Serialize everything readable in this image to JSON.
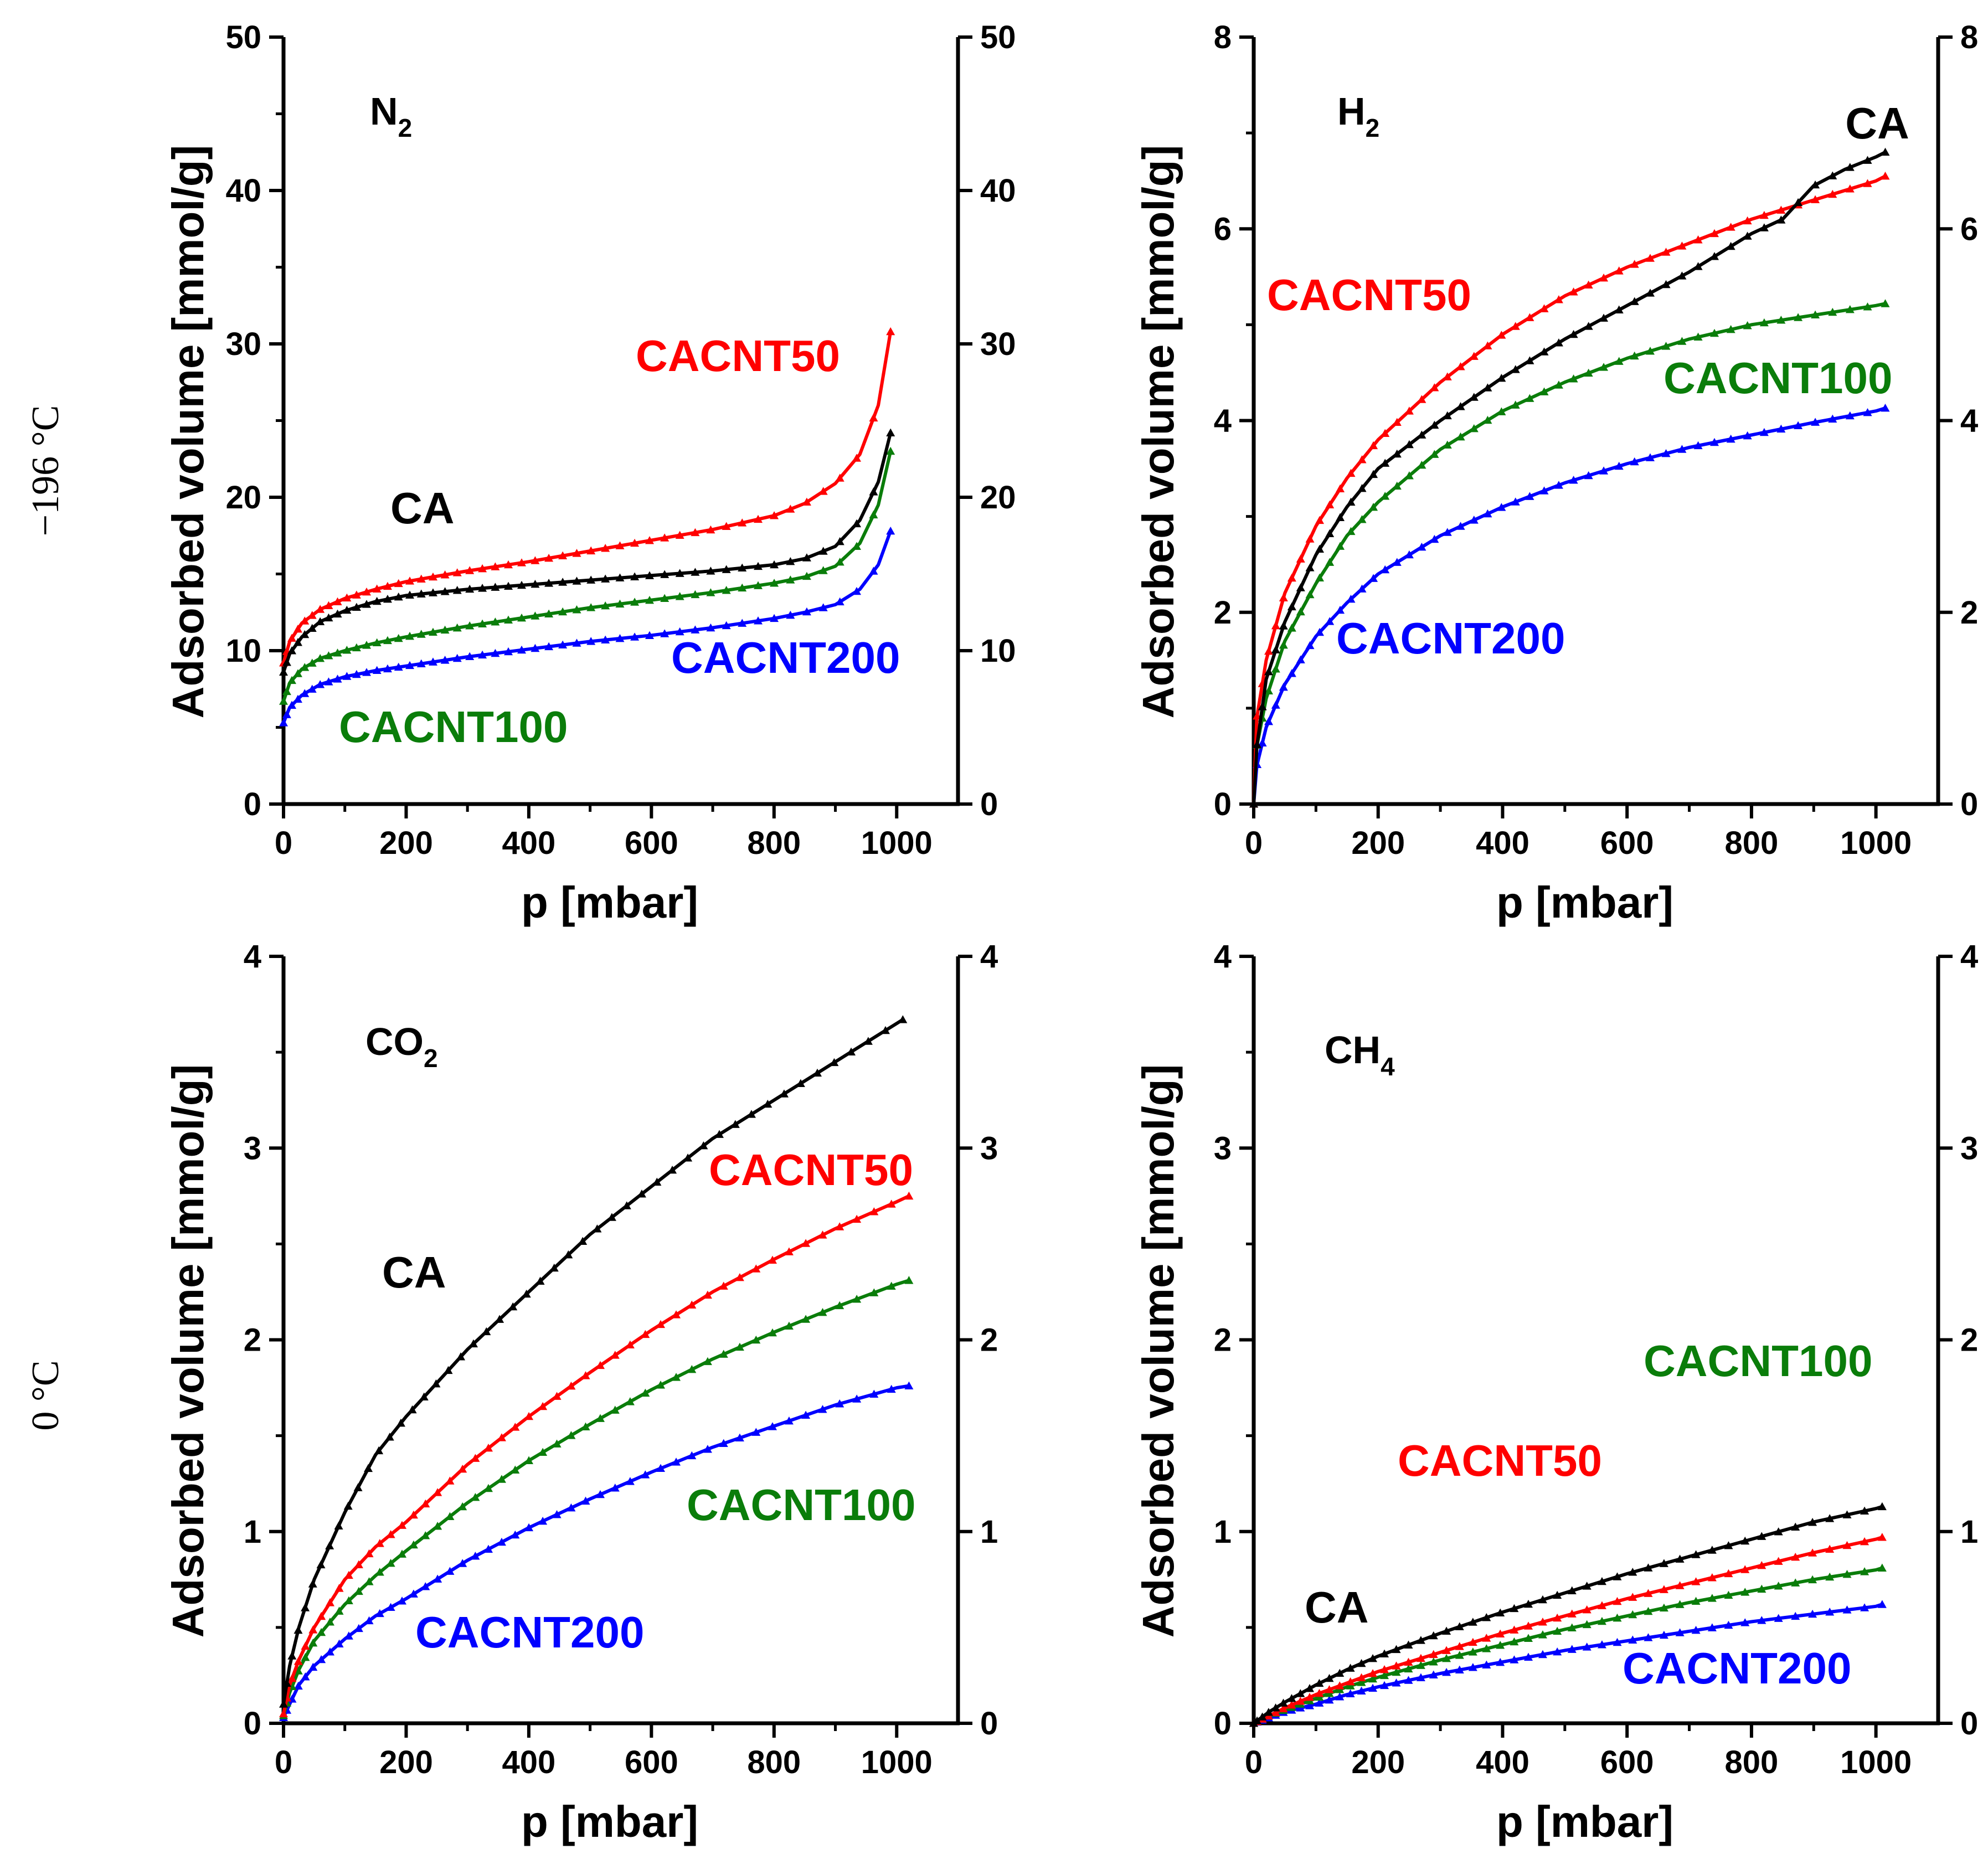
{
  "row_labels": [
    "−196 °C",
    "0 °C"
  ],
  "colors": {
    "CA": "#000000",
    "CACNT50": "#ff0000",
    "CACNT100": "#0a7d0a",
    "CACNT200": "#0000ff"
  },
  "chart_data": [
    {
      "type": "line",
      "panel": "top-left",
      "gas": "N",
      "gas_sub": "2",
      "xlabel": "p [mbar]",
      "ylabel": "Adsorbed volume [mmol/g]",
      "xlim": [
        0,
        1100
      ],
      "ylim": [
        0,
        50
      ],
      "xticks": [
        0,
        200,
        400,
        600,
        800,
        1000
      ],
      "yticks": [
        0,
        10,
        20,
        30,
        40,
        50
      ],
      "series": [
        {
          "name": "CA",
          "x": [
            0,
            10,
            30,
            60,
            100,
            150,
            200,
            300,
            400,
            500,
            600,
            700,
            800,
            850,
            900,
            940,
            970,
            990
          ],
          "values": [
            8.6,
            9.8,
            10.9,
            11.9,
            12.6,
            13.2,
            13.6,
            14.0,
            14.3,
            14.6,
            14.9,
            15.2,
            15.6,
            16.0,
            16.8,
            18.5,
            21.0,
            24.2
          ]
        },
        {
          "name": "CACNT50",
          "x": [
            0,
            10,
            30,
            60,
            100,
            150,
            200,
            300,
            400,
            500,
            600,
            700,
            800,
            850,
            900,
            940,
            970,
            990
          ],
          "values": [
            9.2,
            10.6,
            11.8,
            12.7,
            13.4,
            14.0,
            14.5,
            15.2,
            15.8,
            16.5,
            17.2,
            17.9,
            18.8,
            19.6,
            20.9,
            22.8,
            26.0,
            30.8
          ]
        },
        {
          "name": "CACNT100",
          "x": [
            0,
            10,
            30,
            60,
            100,
            150,
            200,
            300,
            400,
            500,
            600,
            700,
            800,
            850,
            900,
            940,
            970,
            990
          ],
          "values": [
            6.7,
            7.9,
            8.8,
            9.5,
            10.0,
            10.5,
            10.9,
            11.6,
            12.2,
            12.8,
            13.3,
            13.8,
            14.4,
            14.8,
            15.5,
            17.0,
            19.5,
            23.0
          ]
        },
        {
          "name": "CACNT200",
          "x": [
            0,
            10,
            30,
            60,
            100,
            150,
            200,
            300,
            400,
            500,
            600,
            700,
            800,
            850,
            900,
            940,
            970,
            990
          ],
          "values": [
            5.3,
            6.3,
            7.1,
            7.8,
            8.3,
            8.7,
            9.0,
            9.6,
            10.1,
            10.6,
            11.0,
            11.5,
            12.1,
            12.5,
            13.0,
            14.0,
            15.6,
            17.8
          ]
        }
      ],
      "labels": [
        {
          "name": "CA",
          "text": "CA"
        },
        {
          "name": "CACNT50",
          "text": "CACNT50"
        },
        {
          "name": "CACNT100",
          "text": "CACNT100"
        },
        {
          "name": "CACNT200",
          "text": "CACNT200"
        }
      ]
    },
    {
      "type": "line",
      "panel": "top-right",
      "gas": "H",
      "gas_sub": "2",
      "xlabel": "p [mbar]",
      "ylabel": "Adsorbed volume [mmol/g]",
      "xlim": [
        0,
        1100
      ],
      "ylim": [
        0,
        8
      ],
      "xticks": [
        0,
        200,
        400,
        600,
        800,
        1000
      ],
      "yticks": [
        0,
        2,
        4,
        6,
        8
      ],
      "series": [
        {
          "name": "CA",
          "x": [
            0,
            5,
            20,
            50,
            100,
            150,
            200,
            300,
            400,
            500,
            600,
            700,
            800,
            850,
            900,
            950,
            1000,
            1015
          ],
          "values": [
            0.0,
            0.6,
            1.3,
            1.9,
            2.6,
            3.1,
            3.5,
            4.0,
            4.45,
            4.85,
            5.2,
            5.55,
            5.95,
            6.1,
            6.45,
            6.62,
            6.75,
            6.8
          ]
        },
        {
          "name": "CACNT50",
          "x": [
            0,
            5,
            20,
            50,
            100,
            150,
            200,
            300,
            400,
            500,
            600,
            700,
            800,
            900,
            1000,
            1015
          ],
          "values": [
            0.0,
            0.9,
            1.5,
            2.2,
            2.9,
            3.4,
            3.8,
            4.4,
            4.9,
            5.3,
            5.6,
            5.85,
            6.1,
            6.3,
            6.5,
            6.55
          ]
        },
        {
          "name": "CACNT100",
          "x": [
            0,
            5,
            20,
            50,
            100,
            150,
            200,
            300,
            400,
            500,
            600,
            700,
            800,
            900,
            1000,
            1015
          ],
          "values": [
            0.0,
            0.6,
            1.1,
            1.7,
            2.3,
            2.8,
            3.15,
            3.7,
            4.1,
            4.4,
            4.65,
            4.85,
            5.0,
            5.1,
            5.2,
            5.22
          ]
        },
        {
          "name": "CACNT200",
          "x": [
            0,
            5,
            20,
            50,
            100,
            150,
            200,
            300,
            400,
            500,
            600,
            700,
            800,
            900,
            1000,
            1015
          ],
          "values": [
            0.0,
            0.4,
            0.8,
            1.25,
            1.75,
            2.1,
            2.4,
            2.8,
            3.1,
            3.35,
            3.55,
            3.72,
            3.85,
            3.98,
            4.1,
            4.13
          ]
        }
      ],
      "labels": [
        {
          "name": "CA",
          "text": "CA"
        },
        {
          "name": "CACNT50",
          "text": "CACNT50"
        },
        {
          "name": "CACNT100",
          "text": "CACNT100"
        },
        {
          "name": "CACNT200",
          "text": "CACNT200"
        }
      ]
    },
    {
      "type": "line",
      "panel": "bottom-left",
      "gas": "CO",
      "gas_sub": "2",
      "xlabel": "p [mbar]",
      "ylabel": "Adsorbed volume [mmol/g]",
      "xlim": [
        0,
        1100
      ],
      "ylim": [
        0,
        4
      ],
      "xticks": [
        0,
        200,
        400,
        600,
        800,
        1000
      ],
      "yticks": [
        0,
        1,
        2,
        3,
        4
      ],
      "series": [
        {
          "name": "CA",
          "x": [
            0,
            10,
            25,
            50,
            100,
            150,
            200,
            300,
            400,
            500,
            600,
            700,
            800,
            900,
            1000,
            1010
          ],
          "values": [
            0.1,
            0.3,
            0.5,
            0.75,
            1.1,
            1.4,
            1.6,
            1.95,
            2.25,
            2.55,
            2.8,
            3.05,
            3.25,
            3.45,
            3.65,
            3.67
          ]
        },
        {
          "name": "CACNT50",
          "x": [
            0,
            10,
            25,
            50,
            100,
            150,
            200,
            300,
            400,
            500,
            600,
            700,
            800,
            900,
            1000,
            1020
          ],
          "values": [
            0.05,
            0.2,
            0.33,
            0.5,
            0.75,
            0.92,
            1.05,
            1.35,
            1.6,
            1.83,
            2.05,
            2.25,
            2.42,
            2.58,
            2.72,
            2.75
          ]
        },
        {
          "name": "CACNT100",
          "x": [
            0,
            10,
            25,
            50,
            100,
            150,
            200,
            300,
            400,
            500,
            600,
            700,
            800,
            900,
            1000,
            1020
          ],
          "values": [
            0.04,
            0.16,
            0.28,
            0.43,
            0.62,
            0.77,
            0.9,
            1.15,
            1.37,
            1.56,
            1.74,
            1.9,
            2.04,
            2.17,
            2.29,
            2.31
          ]
        },
        {
          "name": "CACNT200",
          "x": [
            0,
            10,
            25,
            50,
            100,
            150,
            200,
            300,
            400,
            500,
            600,
            700,
            800,
            900,
            1000,
            1020
          ],
          "values": [
            0.03,
            0.1,
            0.2,
            0.3,
            0.44,
            0.56,
            0.65,
            0.85,
            1.02,
            1.17,
            1.31,
            1.44,
            1.55,
            1.66,
            1.75,
            1.76
          ]
        }
      ],
      "labels": [
        {
          "name": "CA",
          "text": "CA"
        },
        {
          "name": "CACNT50",
          "text": "CACNT50"
        },
        {
          "name": "CACNT100",
          "text": "CACNT100"
        },
        {
          "name": "CACNT200",
          "text": "CACNT200"
        }
      ]
    },
    {
      "type": "line",
      "panel": "bottom-right",
      "gas": "CH",
      "gas_sub": "4",
      "xlabel": "p [mbar]",
      "ylabel": "Adsorbed volume [mmol/g]",
      "xlim": [
        0,
        1100
      ],
      "ylim": [
        0,
        4
      ],
      "xticks": [
        0,
        200,
        400,
        600,
        800,
        1000
      ],
      "yticks": [
        0,
        1,
        2,
        3,
        4
      ],
      "series": [
        {
          "name": "CA",
          "x": [
            0,
            25,
            50,
            100,
            150,
            200,
            300,
            400,
            500,
            600,
            700,
            800,
            900,
            1000,
            1010
          ],
          "values": [
            0.0,
            0.06,
            0.11,
            0.2,
            0.28,
            0.35,
            0.47,
            0.58,
            0.68,
            0.78,
            0.87,
            0.96,
            1.05,
            1.12,
            1.13
          ]
        },
        {
          "name": "CACNT50",
          "x": [
            0,
            25,
            50,
            100,
            150,
            200,
            300,
            400,
            500,
            600,
            700,
            800,
            900,
            1000,
            1010
          ],
          "values": [
            0.0,
            0.04,
            0.08,
            0.15,
            0.21,
            0.27,
            0.37,
            0.47,
            0.56,
            0.65,
            0.73,
            0.81,
            0.89,
            0.96,
            0.97
          ]
        },
        {
          "name": "CACNT100",
          "x": [
            0,
            25,
            50,
            100,
            150,
            200,
            300,
            400,
            500,
            600,
            700,
            800,
            900,
            1000,
            1010
          ],
          "values": [
            0.0,
            0.04,
            0.07,
            0.13,
            0.19,
            0.24,
            0.33,
            0.41,
            0.49,
            0.56,
            0.63,
            0.69,
            0.75,
            0.8,
            0.81
          ]
        },
        {
          "name": "CACNT200",
          "x": [
            0,
            25,
            50,
            100,
            150,
            200,
            300,
            400,
            500,
            600,
            700,
            800,
            900,
            1000,
            1010
          ],
          "values": [
            0.0,
            0.03,
            0.06,
            0.1,
            0.15,
            0.19,
            0.26,
            0.32,
            0.38,
            0.43,
            0.48,
            0.53,
            0.57,
            0.61,
            0.62
          ]
        }
      ],
      "labels": [
        {
          "name": "CA",
          "text": "CA"
        },
        {
          "name": "CACNT50",
          "text": "CACNT50"
        },
        {
          "name": "CACNT100",
          "text": "CACNT100"
        },
        {
          "name": "CACNT200",
          "text": "CACNT200"
        }
      ]
    }
  ]
}
